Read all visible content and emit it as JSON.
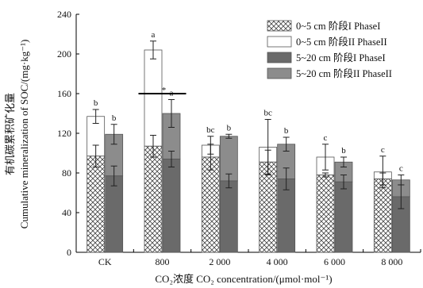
{
  "chart_data": {
    "type": "bar",
    "stacked_phases": true,
    "xlabel": "CO₂浓度 CO₂ concentration/(μmol·mol⁻¹)",
    "ylabel_cn": "有机碳累积矿化量",
    "ylabel_en": "Cumulative mineralization of SOC/(mg·kg⁻¹)",
    "ylim": [
      0,
      240
    ],
    "yticks": [
      "0",
      "40",
      "80",
      "120",
      "160",
      "200",
      "240"
    ],
    "categories": [
      "CK",
      "800",
      "2 000",
      "4 000",
      "6 000",
      "8 000"
    ],
    "groups": [
      {
        "depth": "0~5 cm",
        "phase1": [
          97,
          107,
          96,
          91,
          78,
          74
        ],
        "phase1_err": [
          11,
          11,
          13,
          12,
          2,
          6
        ],
        "total": [
          137,
          204,
          108,
          106,
          96,
          81
        ],
        "total_err": [
          7,
          9,
          9,
          28,
          13,
          16
        ],
        "sig": [
          "b",
          "a",
          "bc",
          "bc",
          "c",
          "c"
        ]
      },
      {
        "depth": "5~20 cm",
        "phase1": [
          77,
          94,
          72,
          74,
          71,
          56
        ],
        "phase1_err": [
          10,
          8,
          7,
          11,
          7,
          12
        ],
        "total": [
          119,
          140,
          117,
          109,
          91,
          73
        ],
        "total_err": [
          10,
          14,
          2,
          7,
          5,
          5
        ],
        "sig": [
          "b",
          "a",
          "b",
          "b",
          "b",
          "c"
        ]
      }
    ],
    "annotation": {
      "text": "*",
      "category": "800"
    },
    "legend": {
      "placement": "top-right",
      "items": [
        {
          "label": "0~5 cm 阶段I  PhaseI",
          "fill": "hatch"
        },
        {
          "label": "0~5 cm 阶段II  PhaseII",
          "fill": "#ffffff"
        },
        {
          "label": "5~20 cm 阶段I  PhaseI",
          "fill": "#6a6a6a"
        },
        {
          "label": "5~20 cm 阶段II  PhaseII",
          "fill": "#8c8c8c"
        }
      ]
    }
  }
}
